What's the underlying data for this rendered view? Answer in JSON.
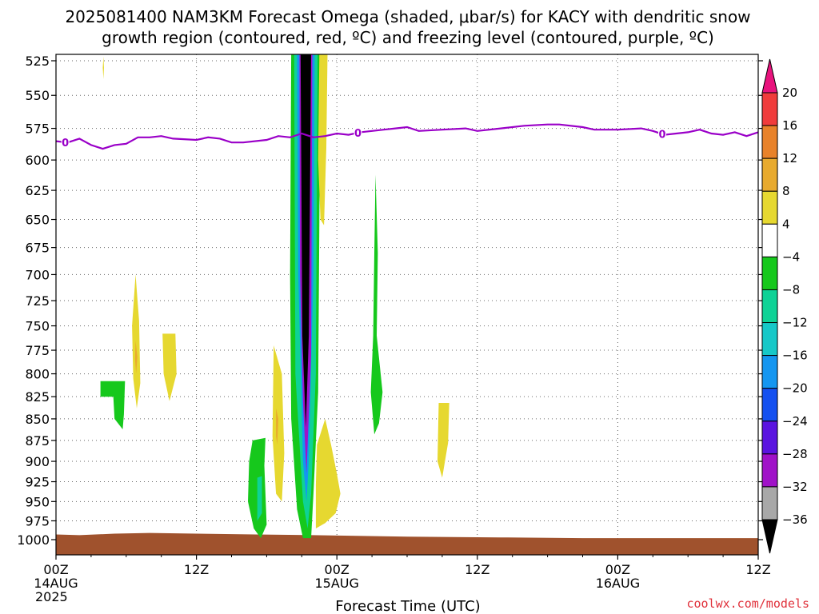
{
  "chart_data": {
    "type": "heatmap",
    "title_line1": "2025081400 NAM3KM Forecast Omega (shaded, μbar/s) for KACY with dendritic snow",
    "title_line2": "growth region (contoured, red, ºC) and freezing level (contoured, purple, ºC)",
    "xlabel": "Forecast Time (UTC)",
    "credit": "coolwx.com/models",
    "x_units": "hours since 2025-08-14 00Z",
    "xlim": [
      0,
      60
    ],
    "ylim_hpa": [
      1000,
      525
    ],
    "log_y": true,
    "grid": true,
    "x_ticks": [
      {
        "x": 0,
        "lines": [
          "00Z",
          "14AUG",
          "2025"
        ]
      },
      {
        "x": 12,
        "lines": [
          "12Z"
        ]
      },
      {
        "x": 24,
        "lines": [
          "00Z",
          "15AUG"
        ]
      },
      {
        "x": 36,
        "lines": [
          "12Z"
        ]
      },
      {
        "x": 48,
        "lines": [
          "00Z",
          "16AUG"
        ]
      },
      {
        "x": 60,
        "lines": [
          "12Z"
        ]
      }
    ],
    "y_ticks": [
      "525",
      "550",
      "575",
      "600",
      "625",
      "650",
      "675",
      "700",
      "725",
      "750",
      "775",
      "800",
      "825",
      "850",
      "875",
      "900",
      "925",
      "950",
      "975",
      "1000"
    ],
    "colorbar": {
      "labels": [
        "20",
        "16",
        "12",
        "8",
        "4",
        "−4",
        "−8",
        "−12",
        "−16",
        "−20",
        "−24",
        "−28",
        "−32",
        "−36"
      ],
      "colors": [
        "#e8137d",
        "#f03c3c",
        "#e8822a",
        "#e8aa2e",
        "#e6d830",
        "#ffffff",
        "#16c81c",
        "#0ed296",
        "#16c8c8",
        "#1496f0",
        "#1450f0",
        "#5a14e0",
        "#a012c8",
        "#a8a8a8",
        "#000000"
      ]
    },
    "freezing_level": {
      "label": "0",
      "color": "#9a00c8",
      "points": [
        [
          0,
          585
        ],
        [
          1,
          586
        ],
        [
          2,
          583
        ],
        [
          3,
          588
        ],
        [
          4,
          591
        ],
        [
          5,
          588
        ],
        [
          6,
          587
        ],
        [
          7,
          582
        ],
        [
          8,
          582
        ],
        [
          9,
          581
        ],
        [
          10,
          583
        ],
        [
          12,
          584
        ],
        [
          13,
          582
        ],
        [
          14,
          583
        ],
        [
          15,
          586
        ],
        [
          16,
          586
        ],
        [
          18,
          584
        ],
        [
          19,
          581
        ],
        [
          20,
          582
        ],
        [
          21,
          579
        ],
        [
          22,
          582
        ],
        [
          23,
          581
        ],
        [
          24,
          579
        ],
        [
          25,
          580
        ],
        [
          26,
          578
        ],
        [
          27,
          577
        ],
        [
          28,
          576
        ],
        [
          29,
          575
        ],
        [
          30,
          574
        ],
        [
          31,
          577
        ],
        [
          33,
          576
        ],
        [
          35,
          575
        ],
        [
          36,
          577
        ],
        [
          38,
          575
        ],
        [
          40,
          573
        ],
        [
          42,
          572
        ],
        [
          43,
          572
        ],
        [
          45,
          574
        ],
        [
          46,
          576
        ],
        [
          48,
          576
        ],
        [
          50,
          575
        ],
        [
          51,
          577
        ],
        [
          52,
          580
        ],
        [
          54,
          578
        ],
        [
          55,
          576
        ],
        [
          56,
          579
        ],
        [
          57,
          580
        ],
        [
          58,
          578
        ],
        [
          59,
          581
        ],
        [
          60,
          578
        ]
      ],
      "label_x": [
        0.8,
        25.8,
        51.8
      ]
    },
    "terrain": {
      "color": "#a0522d",
      "points": [
        [
          0,
          993
        ],
        [
          2,
          994
        ],
        [
          5,
          992
        ],
        [
          8,
          991
        ],
        [
          12,
          992
        ],
        [
          17,
          993
        ],
        [
          22,
          994
        ],
        [
          30,
          996
        ],
        [
          38,
          997
        ],
        [
          45,
          998
        ],
        [
          50,
          998
        ],
        [
          53,
          998
        ],
        [
          60,
          998
        ]
      ]
    },
    "omega_features": [
      {
        "level": 4,
        "color": "#e6d830",
        "polygon": [
          [
            4,
            530
          ],
          [
            4.05,
            522
          ],
          [
            4.1,
            530
          ],
          [
            4.05,
            538
          ]
        ]
      },
      {
        "level": 4,
        "color": "#e6d830",
        "polygon": [
          [
            6.8,
            700
          ],
          [
            7.1,
            745
          ],
          [
            7.2,
            810
          ],
          [
            6.9,
            838
          ],
          [
            6.6,
            805
          ],
          [
            6.5,
            750
          ]
        ]
      },
      {
        "level": 8,
        "color": "#e8aa2e",
        "polygon": [
          [
            6.8,
            765
          ],
          [
            6.95,
            782
          ],
          [
            6.85,
            800
          ],
          [
            6.75,
            784
          ]
        ]
      },
      {
        "level": 4,
        "color": "#e6d830",
        "polygon": [
          [
            9.1,
            758
          ],
          [
            10.2,
            758
          ],
          [
            10.3,
            800
          ],
          [
            9.7,
            830
          ],
          [
            9.2,
            800
          ]
        ]
      },
      {
        "level": -4,
        "color": "#16c81c",
        "polygon": [
          [
            3.8,
            808
          ],
          [
            5.9,
            808
          ],
          [
            5.8,
            845
          ],
          [
            5.7,
            862
          ],
          [
            5.0,
            850
          ],
          [
            4.9,
            825
          ],
          [
            3.8,
            825
          ]
        ]
      },
      {
        "level": -4,
        "color": "#16c81c",
        "polygon": [
          [
            16.8,
            875
          ],
          [
            17.9,
            872
          ],
          [
            17.8,
            905
          ],
          [
            18,
            980
          ],
          [
            17.5,
            998
          ],
          [
            16.9,
            985
          ],
          [
            16.4,
            950
          ],
          [
            16.5,
            900
          ]
        ]
      },
      {
        "level": -8,
        "color": "#0ed296",
        "polygon": [
          [
            17.2,
            920
          ],
          [
            17.6,
            918
          ],
          [
            17.6,
            965
          ],
          [
            17.2,
            975
          ]
        ]
      },
      {
        "level": 4,
        "color": "#e6d830",
        "polygon": [
          [
            18.6,
            770
          ],
          [
            19.3,
            800
          ],
          [
            19.5,
            890
          ],
          [
            19.3,
            950
          ],
          [
            18.8,
            940
          ],
          [
            18.5,
            870
          ]
        ]
      },
      {
        "level": 8,
        "color": "#e8aa2e",
        "polygon": [
          [
            18.8,
            838
          ],
          [
            19.0,
            850
          ],
          [
            18.9,
            880
          ],
          [
            18.8,
            870
          ]
        ]
      },
      {
        "level": -4,
        "color": "#16c81c",
        "polygon": [
          [
            20.1,
            520
          ],
          [
            22.6,
            520
          ],
          [
            22.5,
            650
          ],
          [
            22.4,
            820
          ],
          [
            22.0,
            940
          ],
          [
            21.8,
            998
          ],
          [
            21.1,
            998
          ],
          [
            20.6,
            960
          ],
          [
            20.1,
            850
          ],
          [
            20.0,
            700
          ]
        ]
      },
      {
        "level": -8,
        "color": "#0ed296",
        "polygon": [
          [
            20.35,
            520
          ],
          [
            22.35,
            520
          ],
          [
            22.2,
            800
          ],
          [
            21.8,
            940
          ],
          [
            21.5,
            985
          ],
          [
            21.1,
            950
          ],
          [
            20.45,
            800
          ]
        ]
      },
      {
        "level": -16,
        "color": "#1496f0",
        "polygon": [
          [
            20.6,
            520
          ],
          [
            22.1,
            520
          ],
          [
            22.0,
            700
          ],
          [
            21.6,
            900
          ],
          [
            21.4,
            950
          ],
          [
            21.1,
            900
          ],
          [
            20.7,
            700
          ]
        ]
      },
      {
        "level": -32,
        "color": "#a012c8",
        "polygon": [
          [
            20.8,
            520
          ],
          [
            21.9,
            520
          ],
          [
            21.8,
            780
          ],
          [
            21.4,
            915
          ],
          [
            21.1,
            830
          ],
          [
            20.85,
            700
          ]
        ]
      },
      {
        "level": -36,
        "color": "#000000",
        "polygon": [
          [
            20.9,
            520
          ],
          [
            21.8,
            520
          ],
          [
            21.6,
            760
          ],
          [
            21.35,
            860
          ],
          [
            21.05,
            760
          ]
        ]
      },
      {
        "level": 4,
        "color": "#e6d830",
        "polygon": [
          [
            22.5,
            520
          ],
          [
            23.2,
            520
          ],
          [
            23.1,
            590
          ],
          [
            22.9,
            655
          ],
          [
            22.6,
            650
          ],
          [
            22.4,
            600
          ]
        ]
      },
      {
        "level": 4,
        "color": "#e6d830",
        "polygon": [
          [
            22.3,
            880
          ],
          [
            23.0,
            850
          ],
          [
            23.5,
            880
          ],
          [
            24.0,
            915
          ],
          [
            24.3,
            940
          ],
          [
            23.9,
            965
          ],
          [
            23.0,
            978
          ],
          [
            22.2,
            985
          ],
          [
            22.2,
            930
          ]
        ]
      },
      {
        "level": -4,
        "color": "#16c81c",
        "polygon": [
          [
            27.3,
            612
          ],
          [
            27.5,
            680
          ],
          [
            27.4,
            760
          ],
          [
            27.9,
            820
          ],
          [
            27.6,
            855
          ],
          [
            27.2,
            868
          ],
          [
            26.9,
            820
          ],
          [
            27.1,
            760
          ],
          [
            27.2,
            680
          ]
        ]
      },
      {
        "level": 4,
        "color": "#e6d830",
        "polygon": [
          [
            32.7,
            832
          ],
          [
            33.6,
            832
          ],
          [
            33.5,
            878
          ],
          [
            33.0,
            920
          ],
          [
            32.6,
            900
          ]
        ]
      }
    ]
  }
}
